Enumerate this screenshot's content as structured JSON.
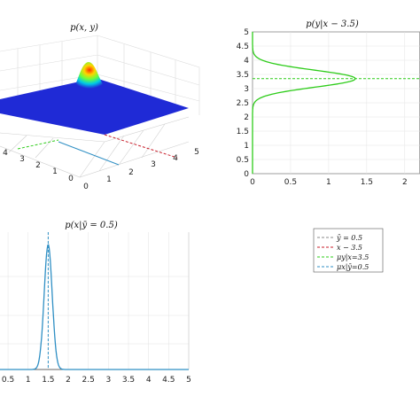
{
  "chart_data": [
    {
      "type": "surface",
      "title": "p(x, y)",
      "x_ticks": [
        "0",
        "1",
        "2",
        "3",
        "4",
        "5"
      ],
      "y_ticks": [
        "0",
        "1",
        "2",
        "3",
        "4"
      ],
      "peak": {
        "x": 1.5,
        "y": 3.5
      },
      "colors": {
        "floor": "#1f2ad6",
        "peak": "#ff2e00"
      }
    },
    {
      "type": "line",
      "title": "p(y|x − 3.5)",
      "y_ticks": [
        "0",
        "0.5",
        "1",
        "1.5",
        "2",
        "2.5",
        "3",
        "3.5",
        "4",
        "4.5",
        "5"
      ],
      "x_ticks": [
        "0",
        "0.5",
        "1",
        "1.5",
        "2"
      ],
      "xlim": [
        0,
        2.2
      ],
      "ylim": [
        0,
        5
      ],
      "curve": {
        "mean": 3.35,
        "sd": 0.3,
        "peak_value": 1.35
      },
      "mean_line_y": 3.35,
      "color": "#2ecc1a"
    },
    {
      "type": "line",
      "title": "p(x|ȳ = 0.5)",
      "x_ticks": [
        "0.5",
        "1",
        "1.5",
        "2",
        "2.5",
        "3",
        "3.5",
        "4",
        "4.5",
        "5"
      ],
      "xlim": [
        0.3,
        5
      ],
      "curve": {
        "mean": 1.5,
        "sd": 0.1
      },
      "mean_line_x": 1.5,
      "color": "#2f8fc4"
    }
  ],
  "legend": [
    {
      "label": "ȳ = 0.5",
      "color": "#8a8a8a",
      "dash": "3,2"
    },
    {
      "label": "x − 3.5",
      "color": "#c81e2a",
      "dash": "3,2"
    },
    {
      "label": "μy|x=3.5",
      "color": "#2ecc1a",
      "dash": "3,2"
    },
    {
      "label": "μx|ȳ=0.5",
      "color": "#2f8fc4",
      "dash": "3,2"
    }
  ]
}
